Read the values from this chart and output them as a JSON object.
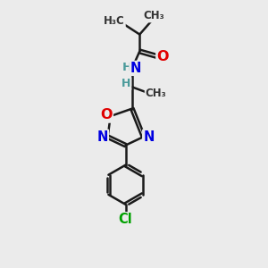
{
  "bg_color": "#ebebeb",
  "bond_color": "#1a1a1a",
  "bond_width": 1.8,
  "atom_colors": {
    "O": "#e00000",
    "N": "#0000e0",
    "Cl": "#00a000",
    "H": "#4a9a9a"
  },
  "font_size": 9.5,
  "xlim": [
    0,
    10
  ],
  "ylim": [
    0,
    14
  ],
  "figsize": [
    3.0,
    3.0
  ],
  "dpi": 100
}
